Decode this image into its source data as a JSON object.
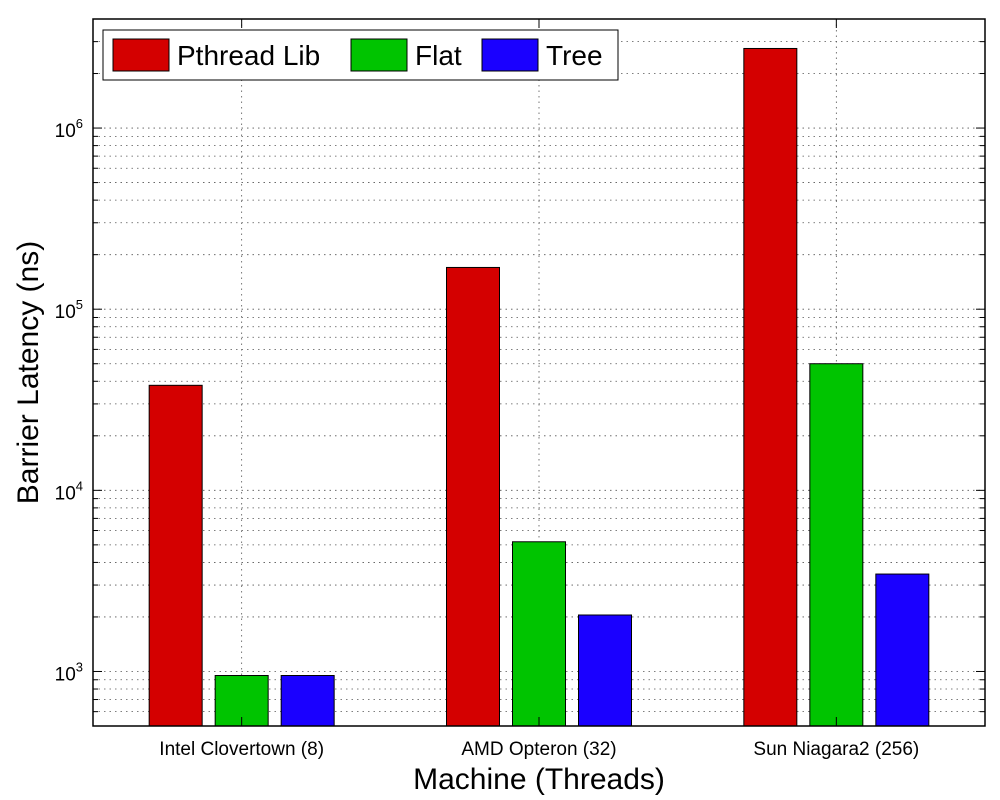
{
  "chart_data": {
    "type": "bar",
    "scale": "log",
    "xlabel": "Machine (Threads)",
    "ylabel": "Barrier Latency (ns)",
    "categories": [
      "Intel Clovertown (8)",
      "AMD Opteron (32)",
      "Sun Niagara2 (256)"
    ],
    "series": [
      {
        "name": "Pthread Lib",
        "color": "#d40000",
        "values": [
          38000,
          170000,
          2750000
        ]
      },
      {
        "name": "Flat",
        "color": "#00c400",
        "values": [
          950,
          5200,
          50000
        ]
      },
      {
        "name": "Tree",
        "color": "#1a00ff",
        "values": [
          950,
          2050,
          3450
        ]
      }
    ],
    "ylim": [
      500,
      4000000
    ],
    "yticks": [
      {
        "base": "10",
        "exp": "3",
        "value": 1000
      },
      {
        "base": "10",
        "exp": "4",
        "value": 10000
      },
      {
        "base": "10",
        "exp": "5",
        "value": 100000
      },
      {
        "base": "10",
        "exp": "6",
        "value": 1000000
      }
    ],
    "grid": true,
    "legend_position": "top-left"
  }
}
